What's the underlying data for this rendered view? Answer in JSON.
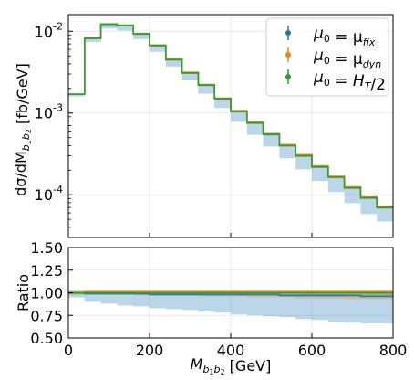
{
  "chart_data": [
    {
      "type": "line",
      "panel": "main",
      "ylabel_parts": [
        "dσ/dM",
        "b",
        "1",
        "b",
        "2",
        "  [fb/GeV]"
      ],
      "yscale": "log",
      "ylim": [
        3e-05,
        0.016
      ],
      "xlim": [
        0,
        800
      ],
      "y_ticks": [
        {
          "base": "10",
          "exp": "-4",
          "value": 0.0001
        },
        {
          "base": "10",
          "exp": "-3",
          "value": 0.001
        },
        {
          "base": "10",
          "exp": "-2",
          "value": 0.01
        }
      ],
      "grid": true,
      "legend_position": "top-right",
      "bin_edges": [
        0,
        40,
        80,
        120,
        160,
        200,
        240,
        280,
        320,
        360,
        400,
        440,
        480,
        520,
        560,
        600,
        640,
        680,
        720,
        760,
        800
      ],
      "series": [
        {
          "key": "fix",
          "color": "#1f77b4",
          "values": [
            0.0017,
            0.0082,
            0.0122,
            0.0118,
            0.0093,
            0.0067,
            0.0045,
            0.0031,
            0.0022,
            0.0015,
            0.00105,
            0.00076,
            0.00055,
            0.0004,
            0.0003,
            0.00022,
            0.000165,
            0.000122,
            9.2e-05,
            7e-05
          ],
          "band_low": [
            0.0016,
            0.0074,
            0.0108,
            0.0102,
            0.008,
            0.0056,
            0.0037,
            0.0025,
            0.00172,
            0.00115,
            0.00078,
            0.00054,
            0.00039,
            0.00028,
            0.000205,
            0.000148,
            0.000108,
            7.9e-05,
            5.8e-05,
            4.7e-05
          ],
          "band_high": [
            0.00172,
            0.0083,
            0.0123,
            0.0119,
            0.0094,
            0.0068,
            0.0046,
            0.00315,
            0.00223,
            0.00152,
            0.00107,
            0.00077,
            0.00056,
            0.00041,
            0.00031,
            0.000225,
            0.000168,
            0.000125,
            9.4e-05,
            7.2e-05
          ]
        },
        {
          "key": "dyn",
          "color": "#ff7f0e",
          "values": [
            0.0017,
            0.0083,
            0.0123,
            0.0119,
            0.0094,
            0.0068,
            0.0046,
            0.00315,
            0.00223,
            0.00152,
            0.00107,
            0.00077,
            0.00056,
            0.00041,
            0.00031,
            0.000225,
            0.000168,
            0.000125,
            9.4e-05,
            7.2e-05
          ],
          "band_low": [
            0.00168,
            0.0081,
            0.012,
            0.0116,
            0.0091,
            0.0066,
            0.0044,
            0.003,
            0.00213,
            0.00145,
            0.00102,
            0.00073,
            0.00053,
            0.00039,
            0.000292,
            0.000212,
            0.000158,
            0.000117,
            8.8e-05,
            6.7e-05
          ],
          "band_high": [
            0.00174,
            0.0084,
            0.0125,
            0.0121,
            0.0096,
            0.0069,
            0.0047,
            0.0032,
            0.00227,
            0.00155,
            0.00109,
            0.00079,
            0.00057,
            0.00042,
            0.000315,
            0.000229,
            0.000171,
            0.000127,
            9.6e-05,
            7.4e-05
          ]
        },
        {
          "key": "ht",
          "color": "#2ca02c",
          "values": [
            0.0017,
            0.0082,
            0.0122,
            0.0118,
            0.0093,
            0.0067,
            0.0045,
            0.0031,
            0.0022,
            0.0015,
            0.00105,
            0.00076,
            0.00055,
            0.0004,
            0.0003,
            0.00022,
            0.000165,
            0.000122,
            9.2e-05,
            7e-05
          ],
          "band_low": [
            0.00167,
            0.008,
            0.0119,
            0.0115,
            0.009,
            0.0065,
            0.0044,
            0.00302,
            0.00214,
            0.00146,
            0.00102,
            0.00074,
            0.00053,
            0.00039,
            0.000292,
            0.000213,
            0.00016,
            0.000118,
            8.9e-05,
            6.8e-05
          ],
          "band_high": [
            0.00173,
            0.0084,
            0.0124,
            0.012,
            0.0095,
            0.0068,
            0.0046,
            0.00316,
            0.00224,
            0.00153,
            0.00107,
            0.00078,
            0.00056,
            0.00041,
            0.000306,
            0.000224,
            0.000168,
            0.000124,
            9.4e-05,
            7.1e-05
          ]
        }
      ],
      "legend": [
        {
          "key": "fix",
          "color": "#1f77b4",
          "parts": [
            [
              "μ",
              "0",
              "sub"
            ],
            [
              " = μ",
              ""
            ],
            [
              "fix",
              "sub",
              "italic"
            ]
          ]
        },
        {
          "key": "dyn",
          "color": "#ff7f0e",
          "parts": [
            [
              "μ",
              "0",
              "sub"
            ],
            [
              " = μ",
              ""
            ],
            [
              "dyn",
              "sub",
              "italic"
            ]
          ]
        },
        {
          "key": "ht",
          "color": "#2ca02c",
          "parts": [
            [
              "μ",
              "0",
              "sub"
            ],
            [
              " = ",
              ""
            ],
            [
              "H",
              ""
            ],
            [
              "T",
              "sub",
              "italic"
            ],
            [
              "/2",
              ""
            ]
          ]
        }
      ]
    },
    {
      "type": "line",
      "panel": "ratio",
      "ylabel": "Ratio",
      "ylim": [
        0.5,
        1.5
      ],
      "xlim": [
        0,
        800
      ],
      "y_tick_labels": [
        "0.50",
        "0.75",
        "1.00",
        "1.25",
        "1.50"
      ],
      "y_tick_values": [
        0.5,
        0.75,
        1.0,
        1.25,
        1.5
      ],
      "x_tick_labels": [
        "0",
        "200",
        "400",
        "600",
        "800"
      ],
      "x_tick_values": [
        0,
        200,
        400,
        600,
        800
      ],
      "xlabel_parts": [
        "M",
        "b",
        "1",
        "b",
        "2",
        "  [GeV]"
      ],
      "grid": true,
      "bin_edges": [
        0,
        40,
        80,
        120,
        160,
        200,
        240,
        280,
        320,
        360,
        400,
        440,
        480,
        520,
        560,
        600,
        640,
        680,
        720,
        760,
        800
      ],
      "series": [
        {
          "key": "fix",
          "color": "#1f77b4",
          "values": [
            1.0,
            0.99,
            0.99,
            0.99,
            0.99,
            0.98,
            0.98,
            0.98,
            0.98,
            0.98,
            0.98,
            0.98,
            0.98,
            0.97,
            0.97,
            0.97,
            0.97,
            0.97,
            0.96,
            0.96
          ],
          "band_low": [
            0.95,
            0.9,
            0.88,
            0.86,
            0.85,
            0.83,
            0.82,
            0.81,
            0.79,
            0.78,
            0.76,
            0.75,
            0.74,
            0.73,
            0.71,
            0.7,
            0.68,
            0.67,
            0.66,
            0.66
          ],
          "band_high": [
            1.01,
            1.01,
            1.01,
            1.01,
            1.01,
            1.01,
            1.01,
            1.01,
            1.01,
            1.01,
            1.01,
            1.01,
            1.01,
            1.01,
            1.01,
            1.01,
            1.01,
            1.01,
            1.01,
            1.01
          ]
        },
        {
          "key": "dyn",
          "color": "#ff7f0e",
          "values": [
            1.0,
            1.01,
            1.01,
            1.01,
            1.01,
            1.01,
            1.01,
            1.01,
            1.01,
            1.01,
            1.01,
            1.01,
            1.01,
            1.01,
            1.01,
            1.01,
            1.01,
            1.01,
            1.01,
            1.01
          ],
          "band_low": [
            0.98,
            0.98,
            0.98,
            0.98,
            0.97,
            0.97,
            0.97,
            0.97,
            0.96,
            0.96,
            0.96,
            0.95,
            0.95,
            0.95,
            0.94,
            0.94,
            0.94,
            0.93,
            0.93,
            0.93
          ],
          "band_high": [
            1.02,
            1.03,
            1.03,
            1.03,
            1.03,
            1.03,
            1.03,
            1.03,
            1.03,
            1.03,
            1.03,
            1.03,
            1.03,
            1.03,
            1.03,
            1.03,
            1.03,
            1.03,
            1.03,
            1.03
          ]
        },
        {
          "key": "ht",
          "color": "#2ca02c",
          "values": [
            1.0,
            1.0,
            1.0,
            1.0,
            1.0,
            1.0,
            1.0,
            1.0,
            1.0,
            1.0,
            1.0,
            1.0,
            1.0,
            1.0,
            1.0,
            1.0,
            1.0,
            1.0,
            1.0,
            1.0
          ],
          "band_low": [
            0.98,
            0.98,
            0.98,
            0.98,
            0.98,
            0.98,
            0.98,
            0.98,
            0.98,
            0.98,
            0.98,
            0.98,
            0.98,
            0.98,
            0.97,
            0.97,
            0.97,
            0.97,
            0.97,
            0.97
          ],
          "band_high": [
            1.02,
            1.02,
            1.02,
            1.02,
            1.02,
            1.02,
            1.02,
            1.02,
            1.02,
            1.02,
            1.02,
            1.02,
            1.02,
            1.02,
            1.02,
            1.02,
            1.02,
            1.02,
            1.02,
            1.02
          ]
        }
      ]
    }
  ]
}
